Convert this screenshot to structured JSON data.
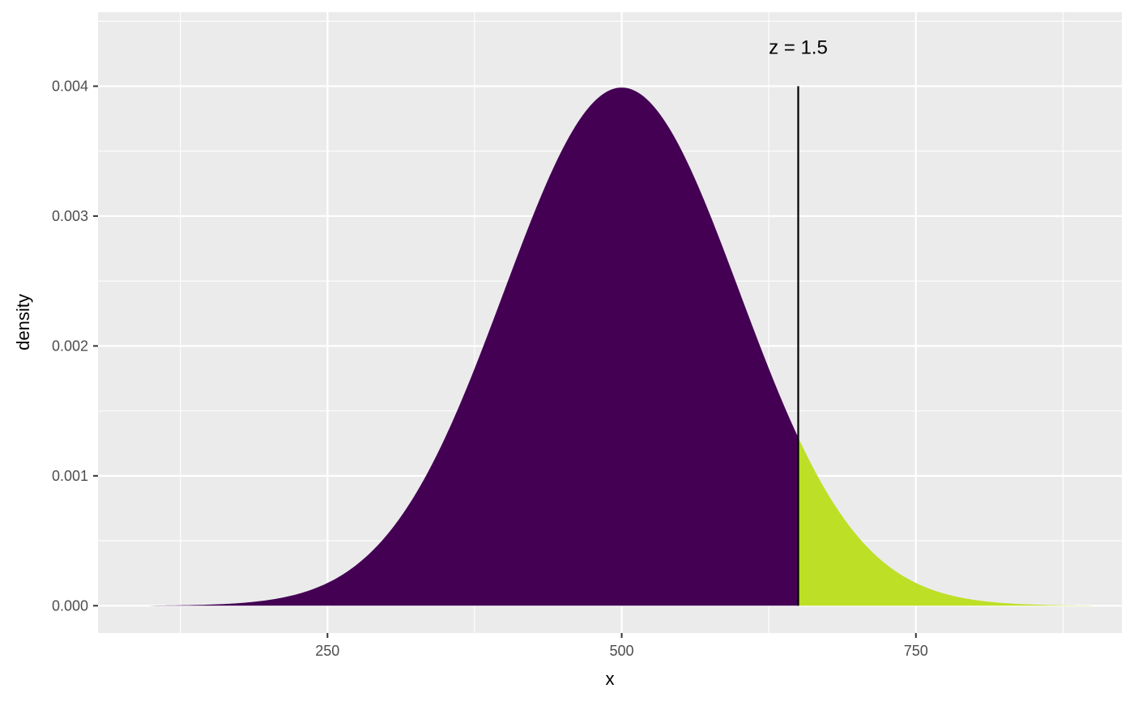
{
  "chart_data": {
    "type": "area",
    "title": "",
    "xlabel": "x",
    "ylabel": "density",
    "distribution": {
      "family": "normal",
      "mean": 500,
      "sd": 100
    },
    "x_range": [
      100,
      900
    ],
    "xlim": [
      55,
      925
    ],
    "ylim": [
      -0.00021,
      0.00457
    ],
    "x_ticks": [
      250,
      500,
      750
    ],
    "x_tick_labels": [
      "250",
      "500",
      "750"
    ],
    "y_ticks": [
      0.0,
      0.001,
      0.002,
      0.003,
      0.004
    ],
    "y_tick_labels": [
      "0.000",
      "0.001",
      "0.002",
      "0.003",
      "0.004"
    ],
    "cutoff_x": 650,
    "regions": [
      {
        "from": 100,
        "to": 650,
        "color": "#440154"
      },
      {
        "from": 650,
        "to": 900,
        "color": "#bddf26"
      }
    ],
    "annotation": {
      "text": "z =  1.5",
      "x": 650,
      "y": 0.0043
    },
    "grid": true,
    "panel_background": "#ebebeb",
    "grid_color": "#ffffff",
    "vline_color": "#000000"
  }
}
